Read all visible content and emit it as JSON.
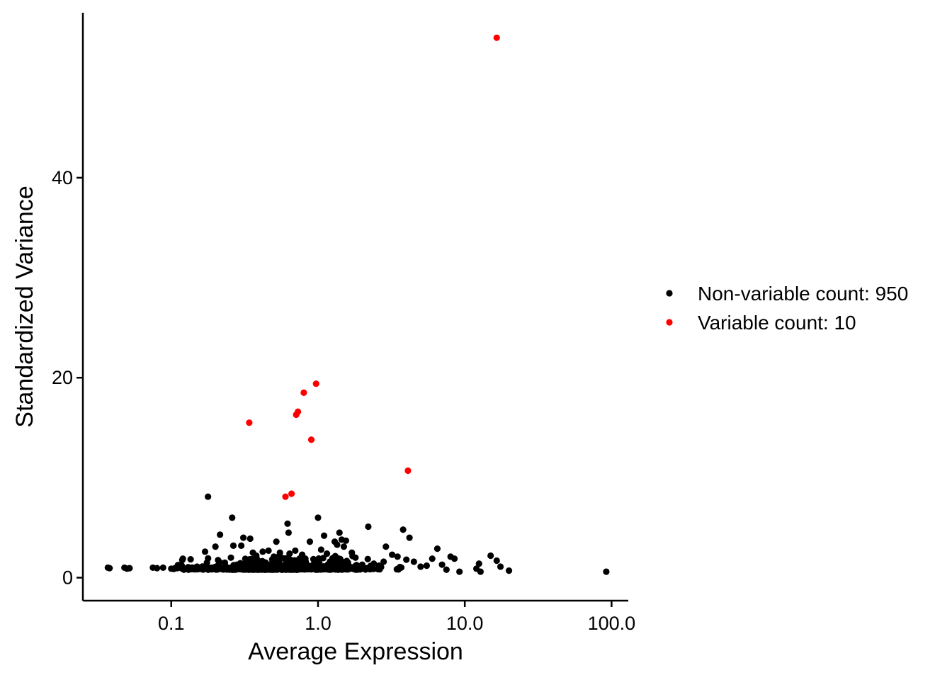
{
  "chart_data": {
    "type": "scatter",
    "xlabel": "Average Expression",
    "ylabel": "Standardized Variance",
    "x_scale": "log10",
    "xlim": [
      0.025,
      130
    ],
    "ylim": [
      -2.3,
      56.5
    ],
    "x_ticks": [
      0.1,
      1.0,
      10.0,
      100.0
    ],
    "x_tick_labels": [
      "0.1",
      "1.0",
      "10.0",
      "100.0"
    ],
    "y_ticks": [
      0,
      20,
      40
    ],
    "y_tick_labels": [
      "0",
      "20",
      "40"
    ],
    "grid": false,
    "legend_position": "right",
    "series": [
      {
        "name": "Non-variable count: 950",
        "color": "#000000",
        "points": [
          [
            0.037,
            1.0
          ],
          [
            0.038,
            0.95
          ],
          [
            0.048,
            1.0
          ],
          [
            0.05,
            0.9
          ],
          [
            0.052,
            0.95
          ],
          [
            0.075,
            1.0
          ],
          [
            0.08,
            0.95
          ],
          [
            0.088,
            1.0
          ],
          [
            0.1,
            0.9
          ],
          [
            0.11,
            0.95
          ],
          [
            0.118,
            1.2
          ],
          [
            0.12,
            1.9
          ],
          [
            0.13,
            1.0
          ],
          [
            0.14,
            1.0
          ],
          [
            0.15,
            1.1
          ],
          [
            0.165,
            0.9
          ],
          [
            0.17,
            2.6
          ],
          [
            0.175,
            1.5
          ],
          [
            0.178,
            8.1
          ],
          [
            0.19,
            1.0
          ],
          [
            0.2,
            3.1
          ],
          [
            0.21,
            1.2
          ],
          [
            0.215,
            4.3
          ],
          [
            0.22,
            0.9
          ],
          [
            0.24,
            1.0
          ],
          [
            0.255,
            2.0
          ],
          [
            0.26,
            6.0
          ],
          [
            0.265,
            3.2
          ],
          [
            0.28,
            1.3
          ],
          [
            0.3,
            3.2
          ],
          [
            0.31,
            4.0
          ],
          [
            0.33,
            1.1
          ],
          [
            0.345,
            3.9
          ],
          [
            0.36,
            2.5
          ],
          [
            0.38,
            2.2
          ],
          [
            0.4,
            1.0
          ],
          [
            0.42,
            2.6
          ],
          [
            0.44,
            1.5
          ],
          [
            0.46,
            2.7
          ],
          [
            0.48,
            1.2
          ],
          [
            0.5,
            2.1
          ],
          [
            0.52,
            3.6
          ],
          [
            0.55,
            2.5
          ],
          [
            0.58,
            1.0
          ],
          [
            0.62,
            5.4
          ],
          [
            0.63,
            4.5
          ],
          [
            0.64,
            2.4
          ],
          [
            0.7,
            2.7
          ],
          [
            0.72,
            1.3
          ],
          [
            0.78,
            2.3
          ],
          [
            0.82,
            1.9
          ],
          [
            0.88,
            3.6
          ],
          [
            0.92,
            1.0
          ],
          [
            0.98,
            1.2
          ],
          [
            1.0,
            6.0
          ],
          [
            1.05,
            2.8
          ],
          [
            1.1,
            4.2
          ],
          [
            1.15,
            2.4
          ],
          [
            1.2,
            1.4
          ],
          [
            1.3,
            3.6
          ],
          [
            1.35,
            3.3
          ],
          [
            1.4,
            4.5
          ],
          [
            1.45,
            3.8
          ],
          [
            1.5,
            3.1
          ],
          [
            1.55,
            3.7
          ],
          [
            1.6,
            1.5
          ],
          [
            1.7,
            2.5
          ],
          [
            1.8,
            2.0
          ],
          [
            1.9,
            1.1
          ],
          [
            2.0,
            1.3
          ],
          [
            2.2,
            5.1
          ],
          [
            2.4,
            1.4
          ],
          [
            2.6,
            1.2
          ],
          [
            2.8,
            1.6
          ],
          [
            2.9,
            3.1
          ],
          [
            3.2,
            2.3
          ],
          [
            3.5,
            0.9
          ],
          [
            3.8,
            4.8
          ],
          [
            4.0,
            1.8
          ],
          [
            4.2,
            4.0
          ],
          [
            4.5,
            1.6
          ],
          [
            5.0,
            1.1
          ],
          [
            5.5,
            1.2
          ],
          [
            6.0,
            1.9
          ],
          [
            6.5,
            2.9
          ],
          [
            7.0,
            1.3
          ],
          [
            7.5,
            0.8
          ],
          [
            8.0,
            2.1
          ],
          [
            8.5,
            1.9
          ],
          [
            9.2,
            0.6
          ],
          [
            12.0,
            0.9
          ],
          [
            12.5,
            1.4
          ],
          [
            12.8,
            0.6
          ],
          [
            15.0,
            2.2
          ],
          [
            16.5,
            1.7
          ],
          [
            17.5,
            1.1
          ],
          [
            20.0,
            0.7
          ],
          [
            92.0,
            0.6
          ]
        ]
      },
      {
        "name": "Variable count: 10",
        "color": "#ff0000",
        "points": [
          [
            16.5,
            54.0
          ],
          [
            0.97,
            19.4
          ],
          [
            0.8,
            18.5
          ],
          [
            0.73,
            16.6
          ],
          [
            0.71,
            16.3
          ],
          [
            0.34,
            15.5
          ],
          [
            0.9,
            13.8
          ],
          [
            4.1,
            10.7
          ],
          [
            0.66,
            8.4
          ],
          [
            0.6,
            8.1
          ]
        ]
      }
    ]
  }
}
